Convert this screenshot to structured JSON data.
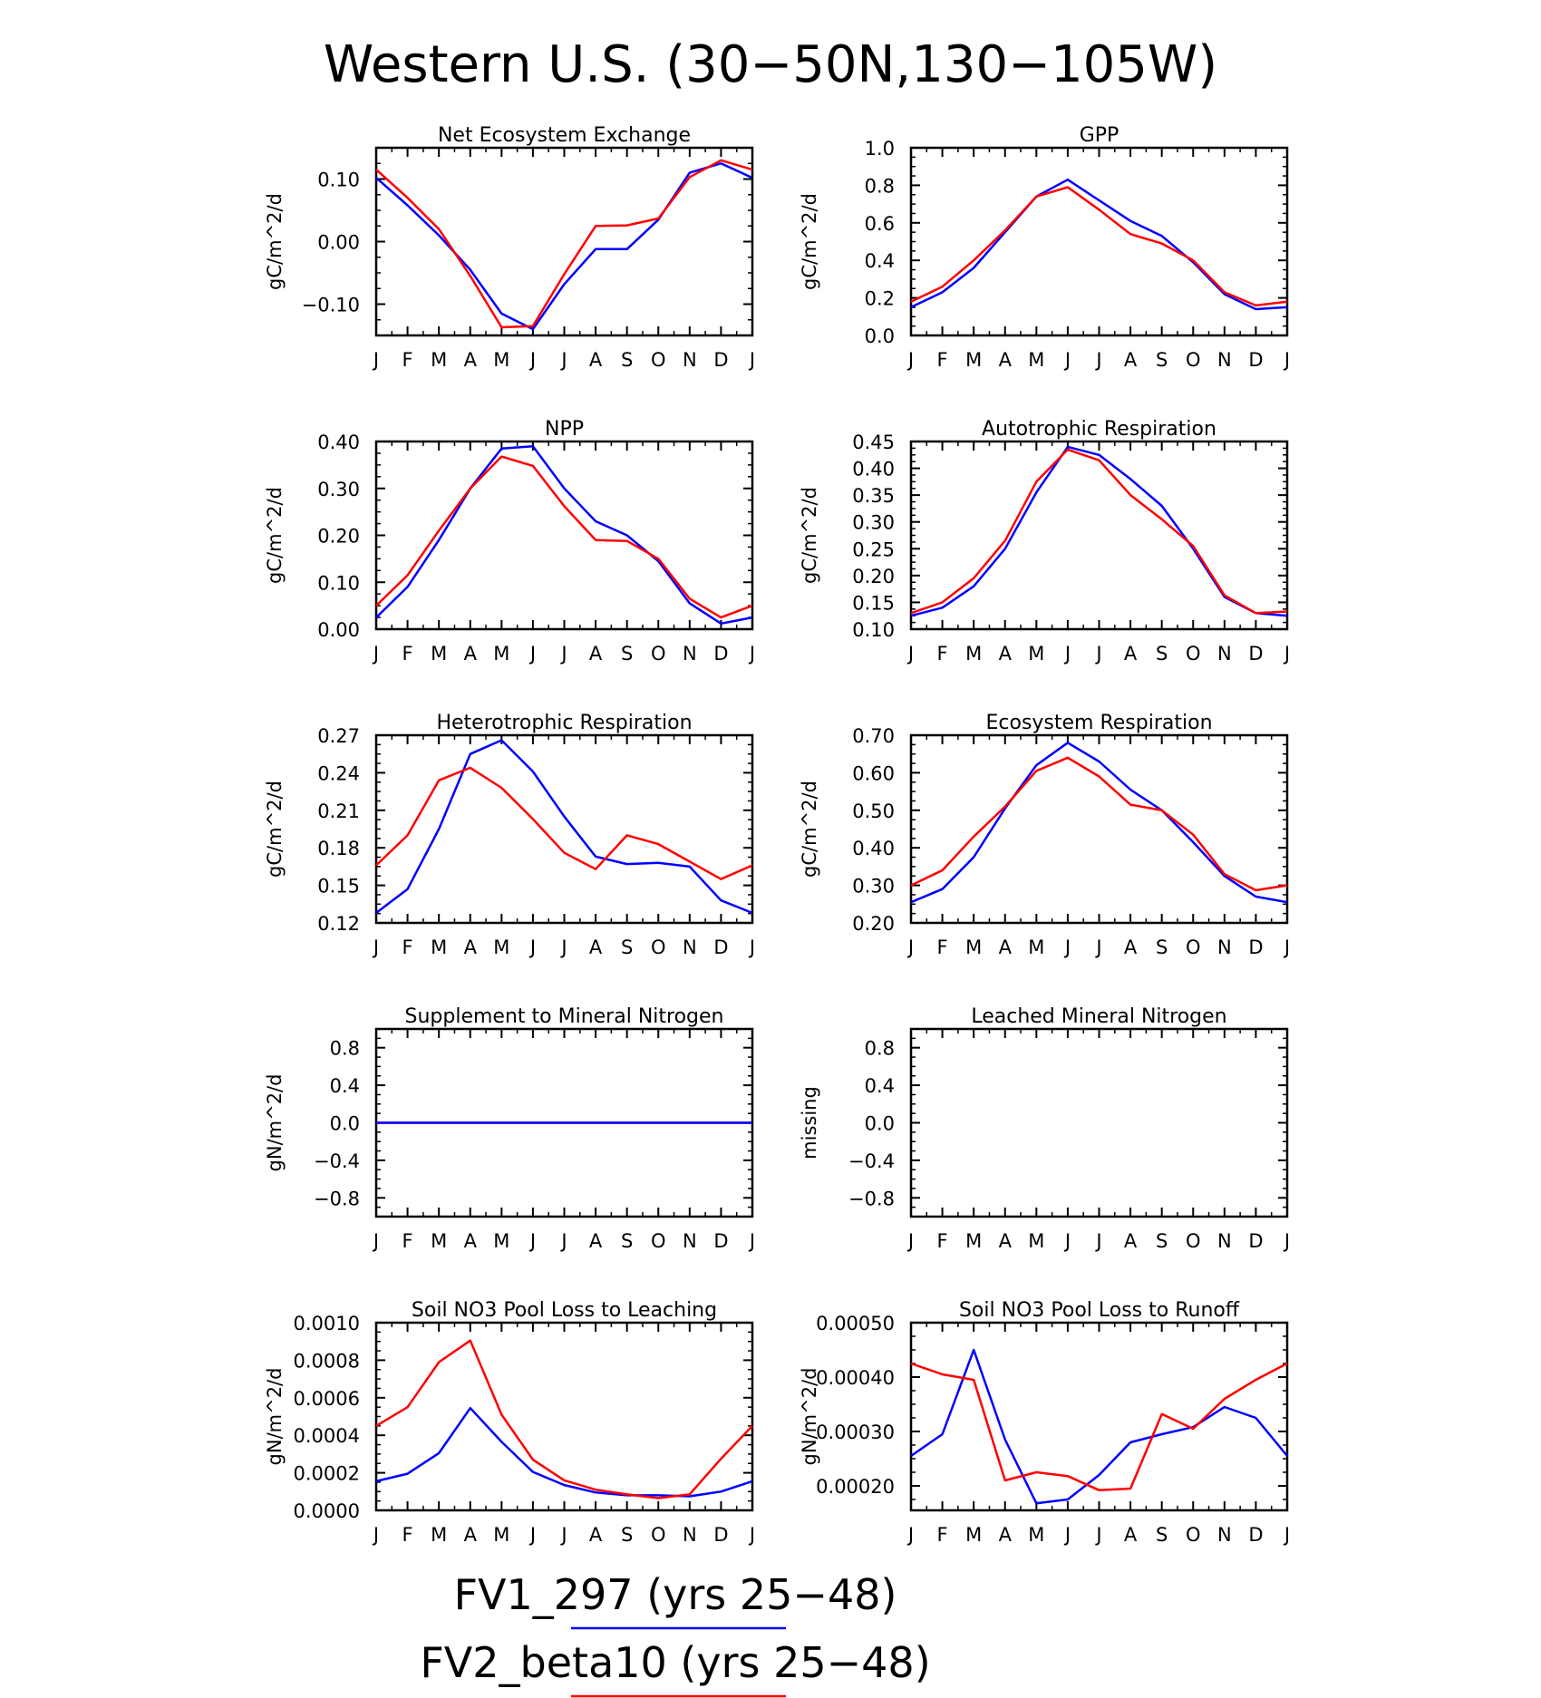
{
  "title": "Western U.S. (30−50N,130−105W)",
  "months": [
    "J",
    "F",
    "M",
    "A",
    "M",
    "J",
    "J",
    "A",
    "S",
    "O",
    "N",
    "D",
    "J"
  ],
  "colors": {
    "FV1_297": "#0000ff",
    "FV2_beta10": "#ff0000"
  },
  "legend": [
    {
      "label": "FV1_297 (yrs 25−48)",
      "color": "#0000ff"
    },
    {
      "label": "FV2_beta10 (yrs 25−48)",
      "color": "#ff0000"
    }
  ],
  "chart_data": [
    {
      "type": "line",
      "title": "Net Ecosystem Exchange",
      "ylabel": "gC/m^2/d",
      "ylim": [
        -0.15,
        0.15
      ],
      "yticks": [
        -0.1,
        0.0,
        0.1
      ],
      "ytick_labels": [
        "−0.10",
        "0.00",
        "0.10"
      ],
      "series": [
        {
          "name": "FV1_297",
          "values": [
            0.102,
            0.058,
            0.01,
            -0.045,
            -0.115,
            -0.14,
            -0.068,
            -0.012,
            -0.012,
            0.035,
            0.11,
            0.125,
            0.102
          ]
        },
        {
          "name": "FV2_beta10",
          "values": [
            0.115,
            0.07,
            0.02,
            -0.055,
            -0.137,
            -0.135,
            -0.052,
            0.025,
            0.026,
            0.037,
            0.103,
            0.13,
            0.115
          ]
        }
      ]
    },
    {
      "type": "line",
      "title": "GPP",
      "ylabel": "gC/m^2/d",
      "ylim": [
        0.0,
        1.0
      ],
      "yticks": [
        0.0,
        0.2,
        0.4,
        0.6,
        0.8,
        1.0
      ],
      "ytick_labels": [
        "0.0",
        "0.2",
        "0.4",
        "0.6",
        "0.8",
        "1.0"
      ],
      "series": [
        {
          "name": "FV1_297",
          "values": [
            0.15,
            0.23,
            0.36,
            0.55,
            0.74,
            0.83,
            0.72,
            0.61,
            0.53,
            0.39,
            0.22,
            0.14,
            0.15
          ]
        },
        {
          "name": "FV2_beta10",
          "values": [
            0.18,
            0.26,
            0.4,
            0.56,
            0.74,
            0.79,
            0.67,
            0.54,
            0.49,
            0.4,
            0.23,
            0.16,
            0.18
          ]
        }
      ]
    },
    {
      "type": "line",
      "title": "NPP",
      "ylabel": "gC/m^2/d",
      "ylim": [
        0.0,
        0.4
      ],
      "yticks": [
        0.0,
        0.1,
        0.2,
        0.3,
        0.4
      ],
      "ytick_labels": [
        "0.00",
        "0.10",
        "0.20",
        "0.30",
        "0.40"
      ],
      "series": [
        {
          "name": "FV1_297",
          "values": [
            0.025,
            0.09,
            0.19,
            0.3,
            0.385,
            0.39,
            0.3,
            0.23,
            0.2,
            0.145,
            0.055,
            0.012,
            0.025
          ]
        },
        {
          "name": "FV2_beta10",
          "values": [
            0.05,
            0.115,
            0.21,
            0.3,
            0.368,
            0.348,
            0.262,
            0.19,
            0.188,
            0.15,
            0.065,
            0.025,
            0.05
          ]
        }
      ]
    },
    {
      "type": "line",
      "title": "Autotrophic Respiration",
      "ylabel": "gC/m^2/d",
      "ylim": [
        0.1,
        0.45
      ],
      "yticks": [
        0.1,
        0.15,
        0.2,
        0.25,
        0.3,
        0.35,
        0.4,
        0.45
      ],
      "ytick_labels": [
        "0.10",
        "0.15",
        "0.20",
        "0.25",
        "0.30",
        "0.35",
        "0.40",
        "0.45"
      ],
      "series": [
        {
          "name": "FV1_297",
          "values": [
            0.125,
            0.14,
            0.18,
            0.25,
            0.355,
            0.44,
            0.425,
            0.38,
            0.33,
            0.25,
            0.16,
            0.13,
            0.125
          ]
        },
        {
          "name": "FV2_beta10",
          "values": [
            0.13,
            0.15,
            0.195,
            0.265,
            0.375,
            0.435,
            0.415,
            0.35,
            0.305,
            0.255,
            0.163,
            0.13,
            0.133
          ]
        }
      ]
    },
    {
      "type": "line",
      "title": "Heterotrophic Respiration",
      "ylabel": "gC/m^2/d",
      "ylim": [
        0.12,
        0.27
      ],
      "yticks": [
        0.12,
        0.15,
        0.18,
        0.21,
        0.24,
        0.27
      ],
      "ytick_labels": [
        "0.12",
        "0.15",
        "0.18",
        "0.21",
        "0.24",
        "0.27"
      ],
      "series": [
        {
          "name": "FV1_297",
          "values": [
            0.128,
            0.147,
            0.195,
            0.255,
            0.266,
            0.241,
            0.205,
            0.173,
            0.167,
            0.168,
            0.165,
            0.138,
            0.128
          ]
        },
        {
          "name": "FV2_beta10",
          "values": [
            0.166,
            0.19,
            0.234,
            0.244,
            0.228,
            0.203,
            0.176,
            0.163,
            0.19,
            0.183,
            0.169,
            0.155,
            0.166
          ]
        }
      ]
    },
    {
      "type": "line",
      "title": "Ecosystem Respiration",
      "ylabel": "gC/m^2/d",
      "ylim": [
        0.2,
        0.7
      ],
      "yticks": [
        0.2,
        0.3,
        0.4,
        0.5,
        0.6,
        0.7
      ],
      "ytick_labels": [
        "0.20",
        "0.30",
        "0.40",
        "0.50",
        "0.60",
        "0.70"
      ],
      "series": [
        {
          "name": "FV1_297",
          "values": [
            0.255,
            0.29,
            0.375,
            0.505,
            0.62,
            0.68,
            0.63,
            0.555,
            0.5,
            0.415,
            0.325,
            0.27,
            0.255
          ]
        },
        {
          "name": "FV2_beta10",
          "values": [
            0.3,
            0.34,
            0.43,
            0.51,
            0.605,
            0.64,
            0.59,
            0.515,
            0.5,
            0.435,
            0.33,
            0.287,
            0.3
          ]
        }
      ]
    },
    {
      "type": "line",
      "title": "Supplement to Mineral Nitrogen",
      "ylabel": "gN/m^2/d",
      "ylim": [
        -1.0,
        1.0
      ],
      "yticks": [
        -0.8,
        -0.4,
        0.0,
        0.4,
        0.8
      ],
      "ytick_labels": [
        "−0.8",
        "−0.4",
        "0.0",
        "0.4",
        "0.8"
      ],
      "series": [
        {
          "name": "FV2_beta10",
          "values": [
            0,
            0,
            0,
            0,
            0,
            0,
            0,
            0,
            0,
            0,
            0,
            0,
            0
          ]
        },
        {
          "name": "FV1_297",
          "values": [
            0,
            0,
            0,
            0,
            0,
            0,
            0,
            0,
            0,
            0,
            0,
            0,
            0
          ]
        }
      ]
    },
    {
      "type": "line",
      "title": "Leached Mineral Nitrogen",
      "ylabel": "missing",
      "ylim": [
        -1.0,
        1.0
      ],
      "yticks": [
        -0.8,
        -0.4,
        0.0,
        0.4,
        0.8
      ],
      "ytick_labels": [
        "−0.8",
        "−0.4",
        "0.0",
        "0.4",
        "0.8"
      ],
      "series": []
    },
    {
      "type": "line",
      "title": "Soil NO3 Pool Loss to Leaching",
      "ylabel": "gN/m^2/d",
      "ylim": [
        0.0,
        0.001
      ],
      "yticks": [
        0.0,
        0.0002,
        0.0004,
        0.0006,
        0.0008,
        0.001
      ],
      "ytick_labels": [
        "0.0000",
        "0.0002",
        "0.0004",
        "0.0006",
        "0.0008",
        "0.0010"
      ],
      "series": [
        {
          "name": "FV1_297",
          "values": [
            0.000155,
            0.000195,
            0.000305,
            0.000545,
            0.000365,
            0.000205,
            0.000135,
            9.5e-05,
            8e-05,
            8e-05,
            7.5e-05,
            0.0001,
            0.000155
          ]
        },
        {
          "name": "FV2_beta10",
          "values": [
            0.00045,
            0.00055,
            0.00079,
            0.000905,
            0.00051,
            0.00027,
            0.00016,
            0.00011,
            8.5e-05,
            6.5e-05,
            8.5e-05,
            0.000275,
            0.00045
          ]
        }
      ]
    },
    {
      "type": "line",
      "title": "Soil NO3 Pool Loss to Runoff",
      "ylabel": "gN/m^2/d",
      "ylim": [
        0.000155,
        0.0005
      ],
      "yticks": [
        0.0002,
        0.0003,
        0.0004,
        0.0005
      ],
      "ytick_labels": [
        "0.00020",
        "0.00030",
        "0.00040",
        "0.00050"
      ],
      "series": [
        {
          "name": "FV1_297",
          "values": [
            0.000255,
            0.000295,
            0.00045,
            0.000285,
            0.000168,
            0.000175,
            0.00022,
            0.00028,
            0.000295,
            0.000308,
            0.000345,
            0.000325,
            0.000255
          ]
        },
        {
          "name": "FV2_beta10",
          "values": [
            0.000425,
            0.000405,
            0.000395,
            0.00021,
            0.000225,
            0.000218,
            0.000192,
            0.000195,
            0.000332,
            0.000305,
            0.00036,
            0.000395,
            0.000425
          ]
        }
      ]
    }
  ]
}
